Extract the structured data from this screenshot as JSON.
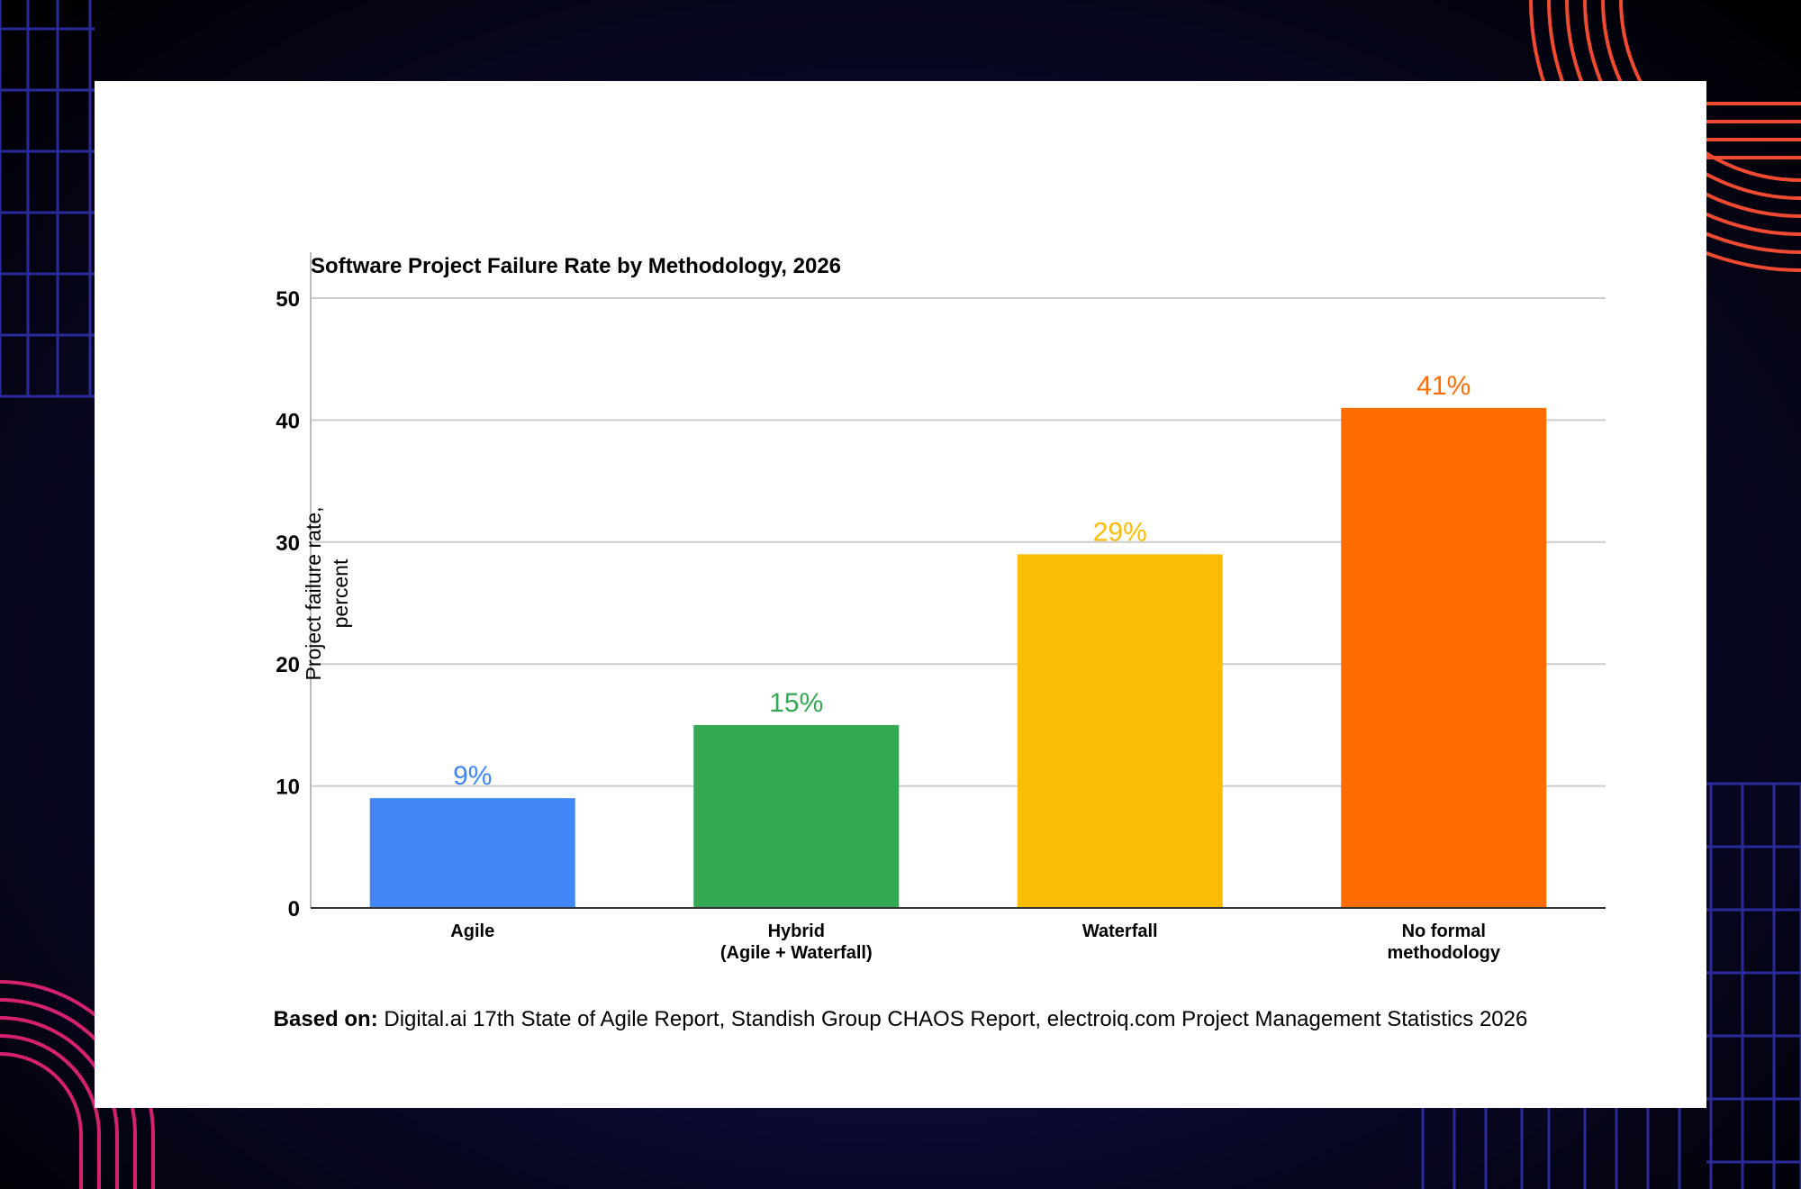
{
  "colors": {
    "agile": "#4285f4",
    "hybrid": "#34a853",
    "waterfall": "#fbbc05",
    "none": "#ff6d00",
    "card": "#ffffff",
    "grid": "#cccccc",
    "deco_orange": "#f04a32",
    "deco_pink": "#d6216f"
  },
  "chart_data": {
    "type": "bar",
    "title": "Software Project Failure Rate by Methodology, 2026",
    "xlabel": "",
    "ylabel": "Project failure rate, percent",
    "ylim": [
      0,
      53
    ],
    "yticks": [
      0,
      10,
      20,
      30,
      40,
      50
    ],
    "grid": true,
    "categories": [
      [
        "Agile"
      ],
      [
        "Hybrid",
        "(Agile + Waterfall)"
      ],
      [
        "Waterfall"
      ],
      [
        "No formal",
        "methodology"
      ]
    ],
    "values": [
      9,
      15,
      29,
      41
    ],
    "data_labels": [
      "9%",
      "15%",
      "29%",
      "41%"
    ],
    "bar_colors": [
      "#4285f4",
      "#34a853",
      "#fbbc05",
      "#ff6d00"
    ]
  },
  "source": {
    "prefix": "Based on:",
    "text": " Digital.ai 17th State of Agile Report, Standish Group CHAOS Report, electroiq.com Project Management Statistics 2026"
  }
}
